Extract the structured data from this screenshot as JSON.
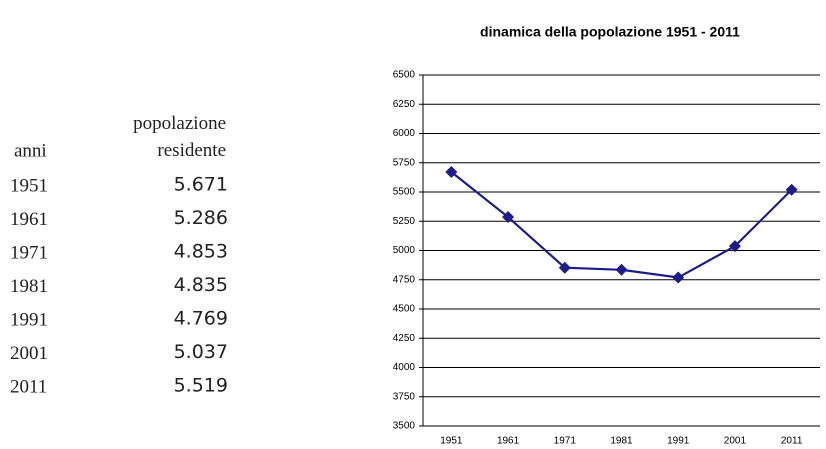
{
  "table": {
    "header": [
      "anni",
      "popolazione residente"
    ],
    "rows": [
      [
        "1951",
        "5.671"
      ],
      [
        "1961",
        "5.286"
      ],
      [
        "1971",
        "4.853"
      ],
      [
        "1981",
        "4.835"
      ],
      [
        "1991",
        "4.769"
      ],
      [
        "2001",
        "5.037"
      ],
      [
        "2011",
        "5.519"
      ]
    ]
  },
  "chart_data": {
    "type": "line",
    "title": "dinamica della popolazione 1951 - 2011",
    "categories": [
      "1951",
      "1961",
      "1971",
      "1981",
      "1991",
      "2001",
      "2011"
    ],
    "series": [
      {
        "name": "popolazione residente",
        "color": "#1c1c8a",
        "values": [
          5671,
          5286,
          4853,
          4835,
          4769,
          5037,
          5519
        ]
      }
    ],
    "ylim": [
      3500,
      6500
    ],
    "yticks": [
      3500,
      3750,
      4000,
      4250,
      4500,
      4750,
      5000,
      5250,
      5500,
      5750,
      6000,
      6250,
      6500
    ],
    "grid": true
  }
}
